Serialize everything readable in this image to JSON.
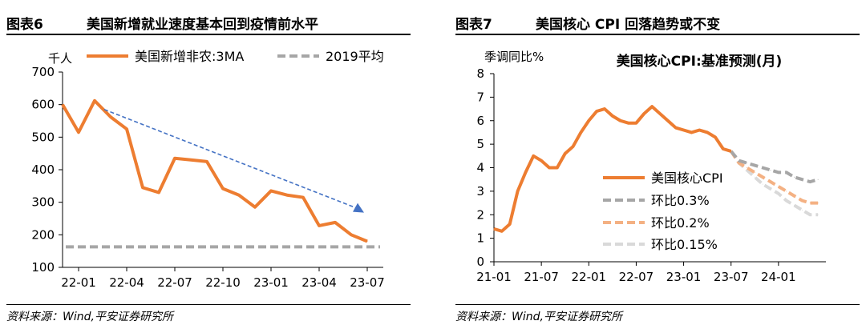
{
  "left": {
    "figure_label": "图表6",
    "figure_title": "美国新增就业速度基本回到疫情前水平",
    "source": "资料来源：Wind,平安证券研究所",
    "colors": {
      "series": "#ED7D31",
      "baseline": "#A6A6A6",
      "trend": "#4472C4"
    }
  },
  "right": {
    "figure_label": "图表7",
    "figure_title": "美国核心 CPI 回落趋势或不变",
    "source": "资料来源：Wind,平安证券研究所",
    "colors": {
      "actual": "#ED7D31",
      "p03": "#A6A6A6",
      "p02": "#F4B183",
      "p015": "#D9D9D9"
    }
  },
  "chart_data": [
    {
      "type": "line",
      "title": "",
      "ylabel": "千人",
      "ylim": [
        100,
        700
      ],
      "yticks": [
        100,
        200,
        300,
        400,
        500,
        600,
        700
      ],
      "x_tick_labels": [
        "22-01",
        "22-04",
        "22-07",
        "22-10",
        "23-01",
        "23-04",
        "23-07"
      ],
      "x_range": [
        "2021-12",
        "2023-08"
      ],
      "legend": [
        "美国新增非农:3MA",
        "2019平均"
      ],
      "series": [
        {
          "name": "美国新增非农:3MA",
          "x": [
            "2021-12",
            "2022-01",
            "2022-02",
            "2022-03",
            "2022-04",
            "2022-05",
            "2022-06",
            "2022-07",
            "2022-08",
            "2022-09",
            "2022-10",
            "2022-11",
            "2022-12",
            "2023-01",
            "2023-02",
            "2023-03",
            "2023-04",
            "2023-05",
            "2023-06",
            "2023-07"
          ],
          "values": [
            600,
            515,
            612,
            562,
            525,
            345,
            330,
            435,
            430,
            425,
            342,
            322,
            285,
            335,
            322,
            315,
            228,
            238,
            200,
            180
          ]
        },
        {
          "name": "2019平均",
          "values": [
            163
          ]
        }
      ],
      "trend_arrow": {
        "from": [
          "2022-02",
          585
        ],
        "to": [
          "2023-07",
          268
        ]
      }
    },
    {
      "type": "line",
      "title": "美国核心CPI:基准预测(月)",
      "ylabel": "季调同比%",
      "ylim": [
        0,
        8
      ],
      "yticks": [
        0,
        1,
        2,
        3,
        4,
        5,
        6,
        7,
        8
      ],
      "x_tick_labels": [
        "21-01",
        "21-07",
        "22-01",
        "22-07",
        "23-01",
        "23-07",
        "24-01"
      ],
      "x_range": [
        "2021-01",
        "2024-07"
      ],
      "legend": [
        "美国核心CPI",
        "环比0.3%",
        "环比0.2%",
        "环比0.15%"
      ],
      "series": [
        {
          "name": "美国核心CPI",
          "x": [
            "2021-01",
            "2021-02",
            "2021-03",
            "2021-04",
            "2021-05",
            "2021-06",
            "2021-07",
            "2021-08",
            "2021-09",
            "2021-10",
            "2021-11",
            "2021-12",
            "2022-01",
            "2022-02",
            "2022-03",
            "2022-04",
            "2022-05",
            "2022-06",
            "2022-07",
            "2022-08",
            "2022-09",
            "2022-10",
            "2022-11",
            "2022-12",
            "2023-01",
            "2023-02",
            "2023-03",
            "2023-04",
            "2023-05",
            "2023-06",
            "2023-07"
          ],
          "values": [
            1.4,
            1.3,
            1.6,
            3.0,
            3.8,
            4.5,
            4.3,
            4.0,
            4.0,
            4.6,
            4.9,
            5.5,
            6.0,
            6.4,
            6.5,
            6.2,
            6.0,
            5.9,
            5.9,
            6.3,
            6.6,
            6.3,
            6.0,
            5.7,
            5.6,
            5.5,
            5.6,
            5.5,
            5.3,
            4.8,
            4.7
          ]
        },
        {
          "name": "环比0.3%",
          "x": [
            "2023-07",
            "2023-08",
            "2023-09",
            "2023-10",
            "2023-11",
            "2023-12",
            "2024-01",
            "2024-02",
            "2024-03",
            "2024-04",
            "2024-05",
            "2024-06"
          ],
          "values": [
            4.7,
            4.3,
            4.2,
            4.1,
            4.0,
            3.9,
            3.8,
            3.8,
            3.6,
            3.5,
            3.4,
            3.5
          ]
        },
        {
          "name": "环比0.2%",
          "x": [
            "2023-07",
            "2023-08",
            "2023-09",
            "2023-10",
            "2023-11",
            "2023-12",
            "2024-01",
            "2024-02",
            "2024-03",
            "2024-04",
            "2024-05",
            "2024-06"
          ],
          "values": [
            4.7,
            4.2,
            4.0,
            3.8,
            3.6,
            3.4,
            3.2,
            3.0,
            2.8,
            2.6,
            2.5,
            2.5
          ]
        },
        {
          "name": "环比0.15%",
          "x": [
            "2023-07",
            "2023-08",
            "2023-09",
            "2023-10",
            "2023-11",
            "2023-12",
            "2024-01",
            "2024-02",
            "2024-03",
            "2024-04",
            "2024-05",
            "2024-06"
          ],
          "values": [
            4.7,
            4.2,
            3.9,
            3.6,
            3.3,
            3.1,
            2.9,
            2.6,
            2.4,
            2.2,
            2.0,
            2.0
          ]
        }
      ]
    }
  ]
}
